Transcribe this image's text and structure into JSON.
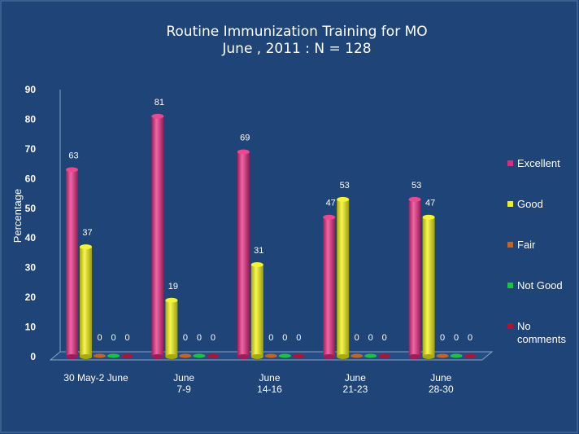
{
  "chart_data": {
    "type": "bar",
    "title": "Routine Immunization Training for MO",
    "subtitle": "June , 2011 : N = 128",
    "ylabel": "Percentage",
    "xlabel": "",
    "ylim": [
      0,
      90
    ],
    "yticks": [
      "0",
      "10",
      "20",
      "30",
      "40",
      "50",
      "60",
      "70",
      "80",
      "90"
    ],
    "categories": [
      [
        "30 May-2 June"
      ],
      [
        "June",
        "7-9"
      ],
      [
        "June",
        "14-16"
      ],
      [
        "June",
        "21-23"
      ],
      [
        "June",
        "28-30"
      ]
    ],
    "series": [
      {
        "name": "Excellent",
        "color": "#e8267f",
        "values": [
          63,
          81,
          69,
          47,
          53
        ]
      },
      {
        "name": "Good",
        "color": "#f2f20c",
        "values": [
          37,
          19,
          31,
          53,
          47
        ]
      },
      {
        "name": "Fair",
        "color": "#c9641a",
        "values": [
          0,
          0,
          0,
          0,
          0
        ]
      },
      {
        "name": "Not Good",
        "color": "#18c63a",
        "values": [
          0,
          0,
          0,
          0,
          0
        ]
      },
      {
        "name": "No comments",
        "color": "#b51230",
        "values": [
          0,
          0,
          0,
          0,
          0
        ]
      }
    ],
    "legend": [
      "Excellent",
      "Good",
      "Fair",
      "Not Good",
      [
        "No",
        "comments"
      ]
    ],
    "legend_position": "right",
    "grid": false
  }
}
